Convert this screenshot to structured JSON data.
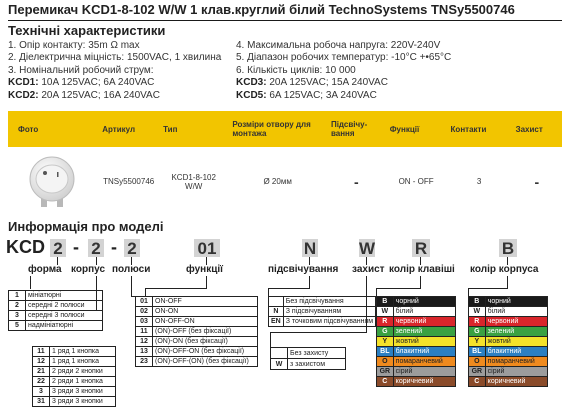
{
  "title": "Перемикач KCD1-8-102 W/W 1 клав.круглий білий TechnoSystems TNSy5500746",
  "specs": {
    "heading": "Технічні характеристики",
    "left": {
      "l1": "1. Опір контакту: 35m Ω  max",
      "l2": "2. Діелектрична міцність:  1500VAC, 1 хвилина",
      "l3": "3. Номінальний робочий струм:",
      "k1_label": "KCD1:",
      "k1_value": " 10A 125VAC; 6A 240VAC",
      "k2_label": "KCD2:",
      "k2_value": " 20A 125VAC; 16A 240VAC"
    },
    "right": {
      "r1": "4. Максимальна робоча напруга: 220V-240V",
      "r2": "5. Діапазон робочих температур: -10°C +•65°C",
      "r3": "6. Кількість циклів: 10 000",
      "k3_label": "KCD3:",
      "k3_value": " 20A 125VAC; 15A 240VAC",
      "k5_label": "KCD5:",
      "k5_value": " 6A 125VAC; 3A 240VAC"
    }
  },
  "table": {
    "headers": [
      "Фото",
      "Артикул",
      "Тип",
      "Розміри отвору для монтажа",
      "Підсвічу-вання",
      "Функції",
      "Контакти",
      "Захист"
    ],
    "row": {
      "article": "TNSy5500746",
      "type_l1": "KCD1-8-102",
      "type_l2": "W/W",
      "size": "Ø 20мм",
      "backlight": "-",
      "functions": "ON - OFF",
      "contacts": "3",
      "protection": "-"
    }
  },
  "model": {
    "heading": "Информація про моделі",
    "prefix": "KCD",
    "boxes": [
      "2",
      "2",
      "2",
      "01",
      "N",
      "W",
      "R",
      "B"
    ],
    "dashes": [
      "-",
      "-"
    ],
    "labels": {
      "form": "форма",
      "body": "корпус",
      "poles": "полюси",
      "function": "функції",
      "backlight": "підсвічування",
      "protection": "захист",
      "key_color": "колір клавіші",
      "body_color": "колір корпуса"
    },
    "form_list": [
      {
        "k": "1",
        "v": "мініатюрні"
      },
      {
        "k": "2",
        "v": "середні 2 полюси"
      },
      {
        "k": "3",
        "v": "середні 3 полюси"
      },
      {
        "k": "5",
        "v": "надмініатюрні"
      }
    ],
    "body_list": [
      {
        "k": "11",
        "v": "1 ряд 1 кнопка"
      },
      {
        "k": "12",
        "v": "1 ряд 1 кнопка"
      },
      {
        "k": "21",
        "v": "2 ряди 2 кнопки"
      },
      {
        "k": "22",
        "v": "2 ряди 1 кнопка"
      },
      {
        "k": "3",
        "v": "3 ряди 3 кнопки"
      },
      {
        "k": "31",
        "v": "3 ряди 3 кнопки"
      }
    ],
    "function_list": [
      {
        "k": "01",
        "v": "ON-OFF"
      },
      {
        "k": "02",
        "v": "ON-ON"
      },
      {
        "k": "03",
        "v": "ON-OFF-ON"
      },
      {
        "k": "11",
        "v": "(ON)-OFF (без фіксації)"
      },
      {
        "k": "12",
        "v": "(ON)-ON (без фіксації)"
      },
      {
        "k": "13",
        "v": "(ON)-OFF-ON (без фіксації)"
      },
      {
        "k": "23",
        "v": "(ON)-OFF-(ON) (без фіксації)"
      }
    ],
    "backlight_list": [
      {
        "k": "",
        "v": "Без підсвічування"
      },
      {
        "k": "N",
        "v": "З підсвічуванням"
      },
      {
        "k": "EN",
        "v": "З точковим підсвічуванням"
      }
    ],
    "protection_list": [
      {
        "k": "",
        "v": "Без захисту"
      },
      {
        "k": "W",
        "v": "з захистом"
      }
    ],
    "key_colors": [
      {
        "k": "B",
        "v": "чорний",
        "color": "#1a1a1a",
        "text": "#ffffff"
      },
      {
        "k": "W",
        "v": "білий",
        "color": "#ffffff",
        "text": "#222222"
      },
      {
        "k": "R",
        "v": "червоний",
        "color": "#d9262b",
        "text": "#ffffff"
      },
      {
        "k": "G",
        "v": "зелений",
        "color": "#3aa142",
        "text": "#ffffff"
      },
      {
        "k": "Y",
        "v": "жовтий",
        "color": "#f4e22a",
        "text": "#222222"
      },
      {
        "k": "BL",
        "v": "блакитний",
        "color": "#2b7fc2",
        "text": "#ffffff"
      },
      {
        "k": "O",
        "v": "помаранчевий",
        "color": "#ef8a1e",
        "text": "#222222"
      },
      {
        "k": "GR",
        "v": "сірий",
        "color": "#9c9c9c",
        "text": "#222222"
      },
      {
        "k": "C",
        "v": "коричневий",
        "color": "#8a4b2a",
        "text": "#ffffff"
      }
    ],
    "body_colors": [
      {
        "k": "B",
        "v": "чорний",
        "color": "#1a1a1a",
        "text": "#ffffff"
      },
      {
        "k": "W",
        "v": "білий",
        "color": "#ffffff",
        "text": "#222222"
      },
      {
        "k": "R",
        "v": "червоний",
        "color": "#d9262b",
        "text": "#ffffff"
      },
      {
        "k": "G",
        "v": "зелений",
        "color": "#3aa142",
        "text": "#ffffff"
      },
      {
        "k": "Y",
        "v": "жовтий",
        "color": "#f4e22a",
        "text": "#222222"
      },
      {
        "k": "BL",
        "v": "блакитний",
        "color": "#2b7fc2",
        "text": "#ffffff"
      },
      {
        "k": "O",
        "v": "помаранчевий",
        "color": "#ef8a1e",
        "text": "#222222"
      },
      {
        "k": "GR",
        "v": "сірий",
        "color": "#9c9c9c",
        "text": "#222222"
      },
      {
        "k": "C",
        "v": "коричневий",
        "color": "#8a4b2a",
        "text": "#ffffff"
      }
    ]
  },
  "colors": {
    "accent": "#f2c500",
    "code_box": "#d3d3d3"
  }
}
